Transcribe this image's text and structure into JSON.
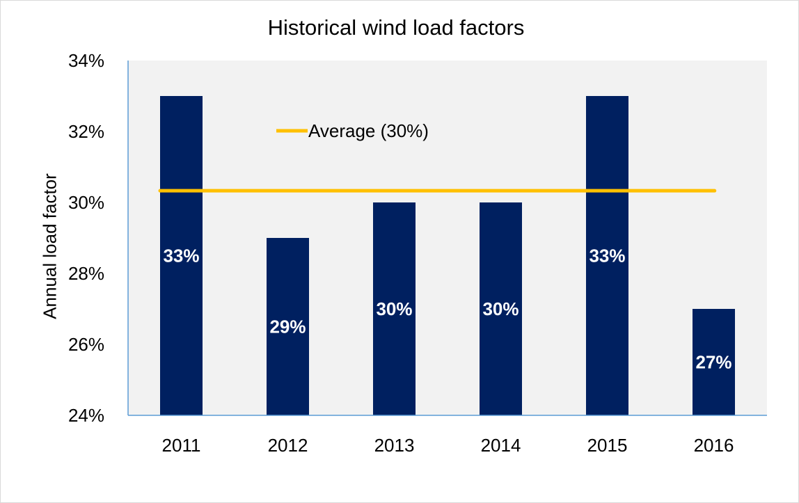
{
  "chart_data": {
    "type": "bar",
    "title": "Historical wind load factors",
    "xlabel": "",
    "ylabel": "Annual load factor",
    "categories": [
      "2011",
      "2012",
      "2013",
      "2014",
      "2015",
      "2016"
    ],
    "values": [
      33,
      29,
      30,
      30,
      33,
      27
    ],
    "data_labels": [
      "33%",
      "29%",
      "30%",
      "30%",
      "33%",
      "27%"
    ],
    "ylim": [
      24,
      34
    ],
    "yticks": [
      24,
      26,
      28,
      30,
      32,
      34
    ],
    "ytick_labels": [
      "24%",
      "26%",
      "28%",
      "30%",
      "32%",
      "34%"
    ],
    "average": {
      "label": "Average (30%)",
      "value": 30.33
    },
    "legend_position": "top-left",
    "grid": false,
    "plot_background": "#f2f2f2",
    "colors": {
      "bar": "#002060",
      "average_line": "#ffc000",
      "axis": "#5b9bd5",
      "bar_label": "#ffffff"
    }
  }
}
